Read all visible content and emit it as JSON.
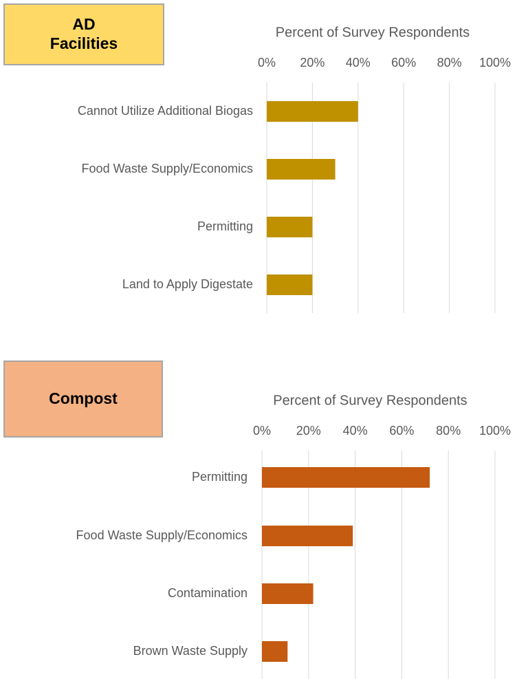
{
  "chart_data": [
    {
      "type": "bar",
      "orientation": "horizontal",
      "label": "AD Facilities",
      "label_color": "#ffd966",
      "xlabel": "Percent of Survey Respondents",
      "categories": [
        "Cannot Utilize Additional Biogas",
        "Food Waste Supply/Economics",
        "Permitting",
        "Land to Apply Digestate"
      ],
      "values": [
        40,
        30,
        20,
        20
      ],
      "color": "#bf9000",
      "xlim": [
        0,
        100
      ],
      "xticks": [
        {
          "value": 0,
          "label": "0%"
        },
        {
          "value": 20,
          "label": "20%"
        },
        {
          "value": 40,
          "label": "40%"
        },
        {
          "value": 60,
          "label": "60%"
        },
        {
          "value": 80,
          "label": "80%"
        },
        {
          "value": 100,
          "label": "100%"
        }
      ],
      "grid": true
    },
    {
      "type": "bar",
      "orientation": "horizontal",
      "label": "Compost",
      "label_color": "#f4b183",
      "xlabel": "Percent of Survey Respondents",
      "categories": [
        "Permitting",
        "Food Waste Supply/Economics",
        "Contamination",
        "Brown Waste Supply"
      ],
      "values": [
        72,
        39,
        22,
        11
      ],
      "color": "#c55a11",
      "xlim": [
        0,
        100
      ],
      "xticks": [
        {
          "value": 0,
          "label": "0%"
        },
        {
          "value": 20,
          "label": "20%"
        },
        {
          "value": 40,
          "label": "40%"
        },
        {
          "value": 60,
          "label": "60%"
        },
        {
          "value": 80,
          "label": "80%"
        },
        {
          "value": 100,
          "label": "100%"
        }
      ],
      "grid": true
    }
  ]
}
